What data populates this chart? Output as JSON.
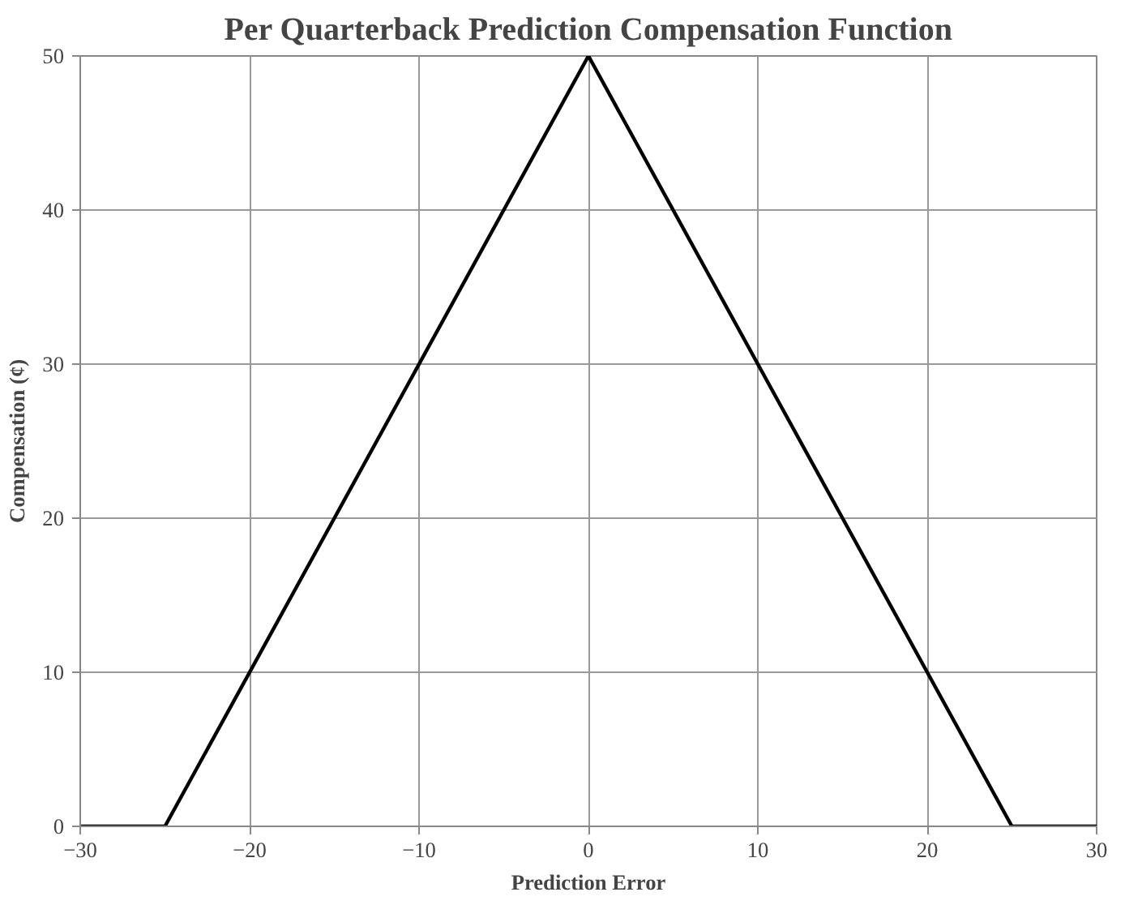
{
  "chart_data": {
    "type": "line",
    "title": "Per Quarterback Prediction Compensation Function",
    "xlabel": "Prediction Error",
    "ylabel": "Compensation (¢)",
    "x": [
      -30,
      -25,
      0,
      25,
      30
    ],
    "series": [
      {
        "color": "#000000",
        "values": [
          0,
          0,
          50,
          0,
          0
        ]
      }
    ],
    "xlim": [
      -30,
      30
    ],
    "xticks": [
      -30,
      -20,
      -10,
      0,
      10,
      20,
      30
    ],
    "ylim": [
      0,
      50
    ],
    "yticks": [
      0,
      10,
      20,
      30,
      40,
      50
    ],
    "grid": true,
    "marker": "none",
    "line_style": "solid"
  }
}
